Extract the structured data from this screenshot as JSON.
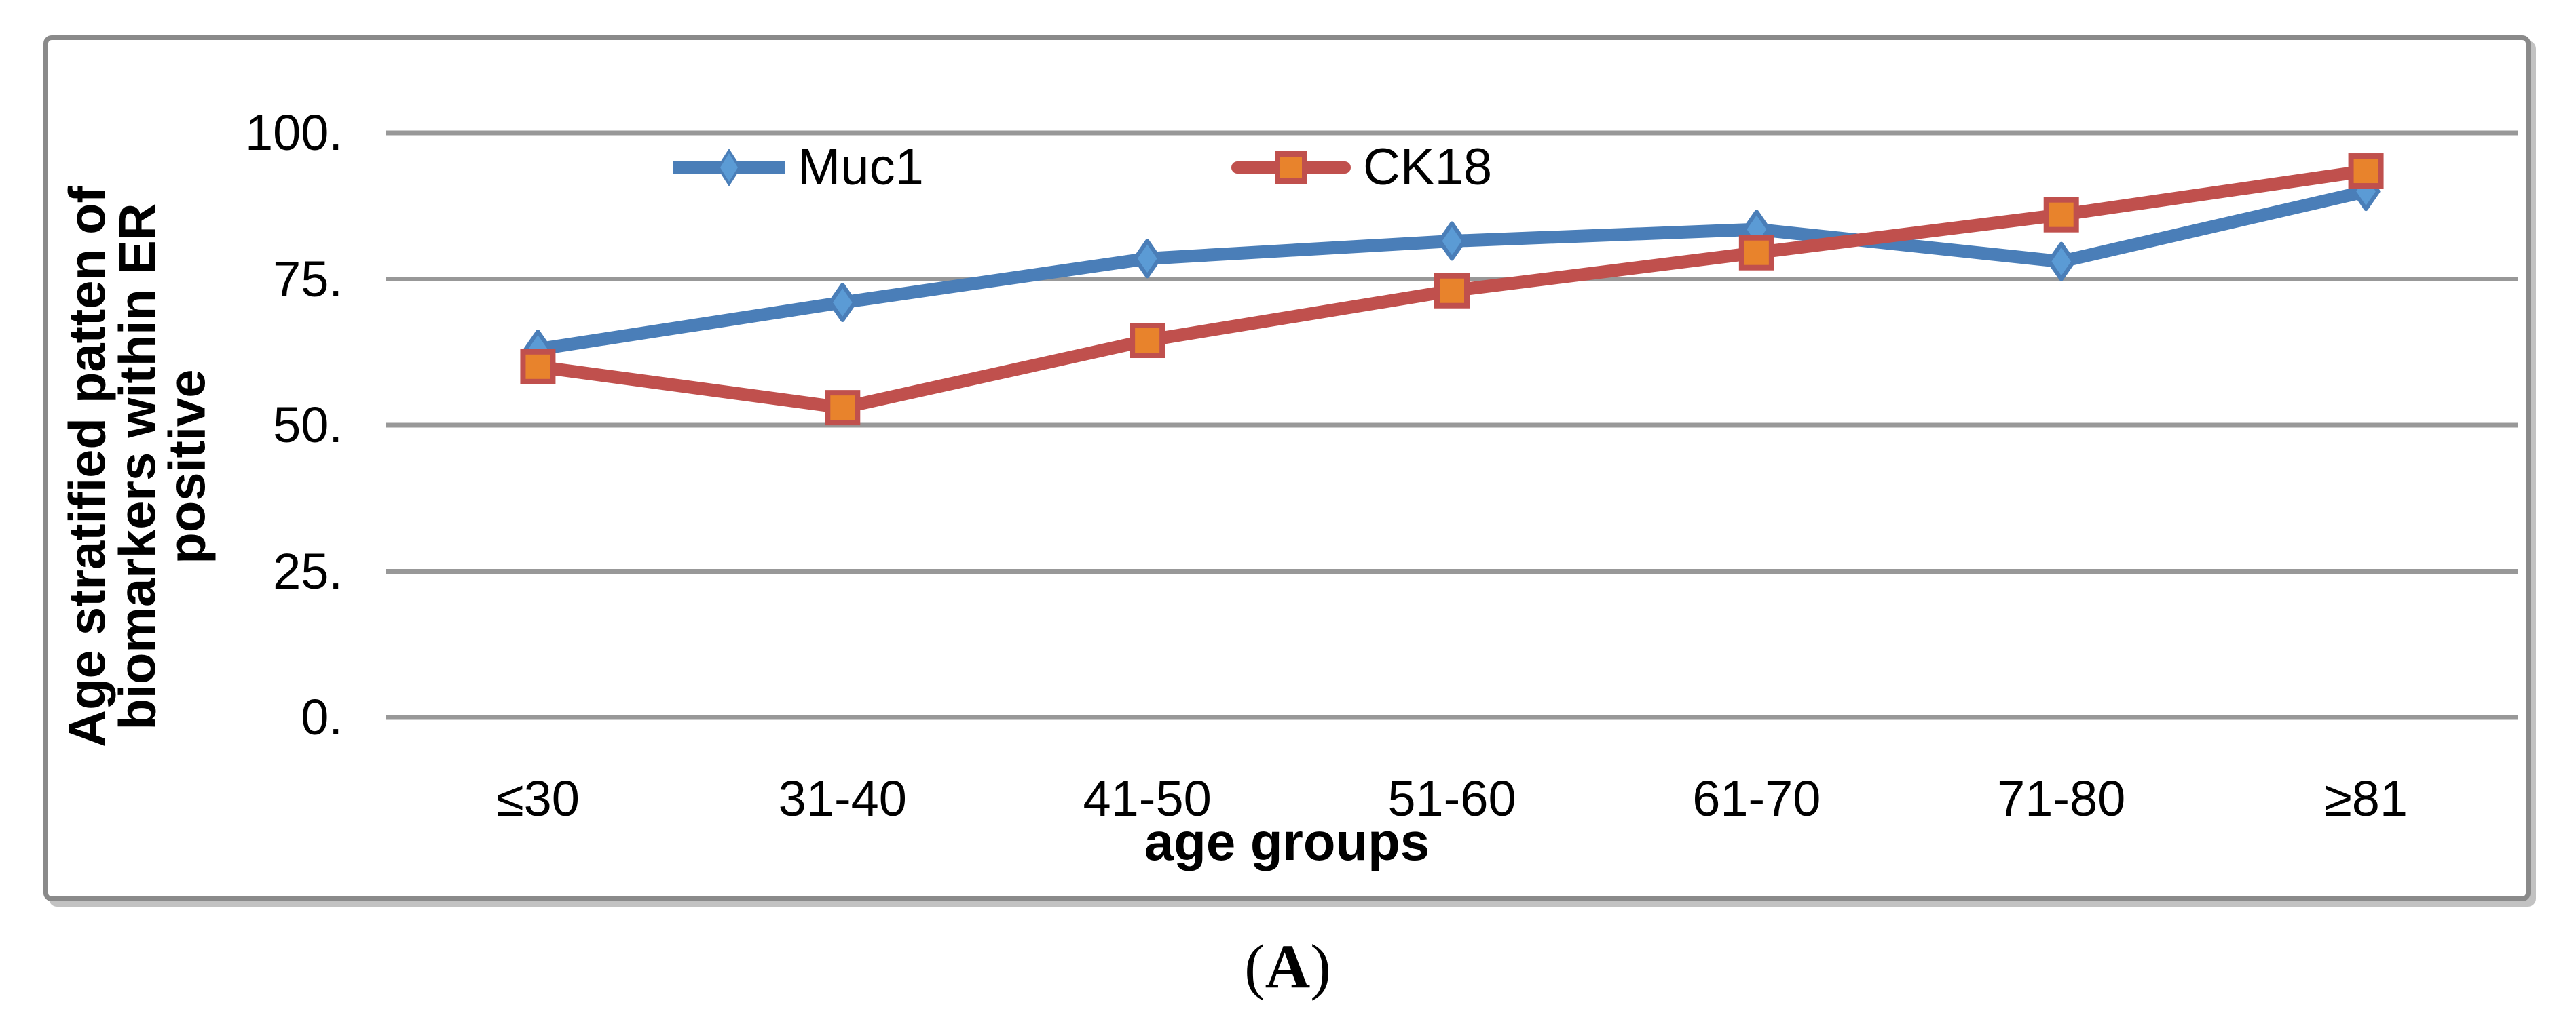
{
  "figure": {
    "caption": {
      "open": "(",
      "letter": "A",
      "close": ")"
    }
  },
  "chart_data": {
    "type": "line",
    "title": "",
    "categories": [
      "≤30",
      "31-40",
      "41-50",
      "51-60",
      "61-70",
      "71-80",
      "≥81"
    ],
    "series": [
      {
        "name": "Muc1",
        "values": [
          63,
          71,
          78.5,
          81.5,
          83.5,
          78,
          90
        ],
        "color": "#4a7eb8",
        "marker": "diamond",
        "marker_fill": "#5b9bd5"
      },
      {
        "name": "CK18",
        "values": [
          60,
          53,
          64.5,
          73,
          79.5,
          86,
          93.5
        ],
        "color": "#c0504d",
        "marker": "square",
        "marker_fill": "#e8832c"
      }
    ],
    "xlabel": "age groups",
    "ylabel": "Age stratified patten of biomarkers within ER positive",
    "ylabel_lines": "Age stratified patten of\nbiomarkers within ER\npositive",
    "y_ticks": [
      {
        "value": 100,
        "label": "100."
      },
      {
        "value": 75,
        "label": "75."
      },
      {
        "value": 50,
        "label": "50."
      },
      {
        "value": 25,
        "label": "25."
      },
      {
        "value": 0,
        "label": "0."
      }
    ],
    "ylim": [
      0,
      100
    ],
    "grid": "horizontal",
    "gridline_color": "#989898",
    "legend_position": "top-inside"
  }
}
